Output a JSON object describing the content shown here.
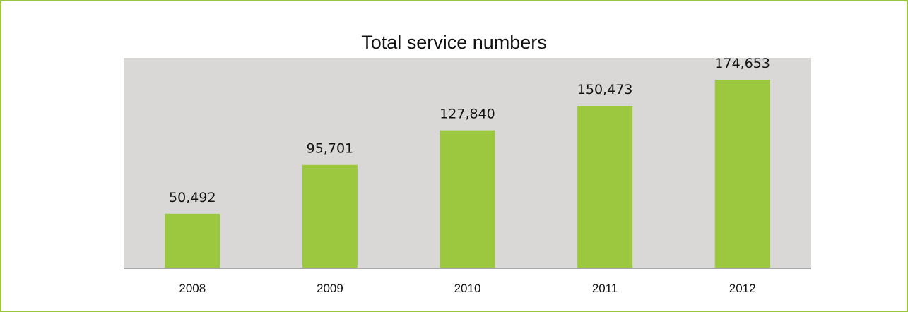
{
  "chart_data": {
    "type": "bar",
    "title": "Total service numbers",
    "categories": [
      "2008",
      "2009",
      "2010",
      "2011",
      "2012"
    ],
    "values": [
      50492,
      95701,
      127840,
      150473,
      174653
    ],
    "value_labels": [
      "50,492",
      "95,701",
      "127,840",
      "150,473",
      "174,653"
    ],
    "xlabel": "",
    "ylabel": "",
    "ylim": [
      0,
      195000
    ],
    "grid": false,
    "legend": "none"
  },
  "colors": {
    "bar": "#9bc83f",
    "plot_background": "#d9d8d7",
    "frame": "#9bc53d",
    "axis": "#888888"
  }
}
